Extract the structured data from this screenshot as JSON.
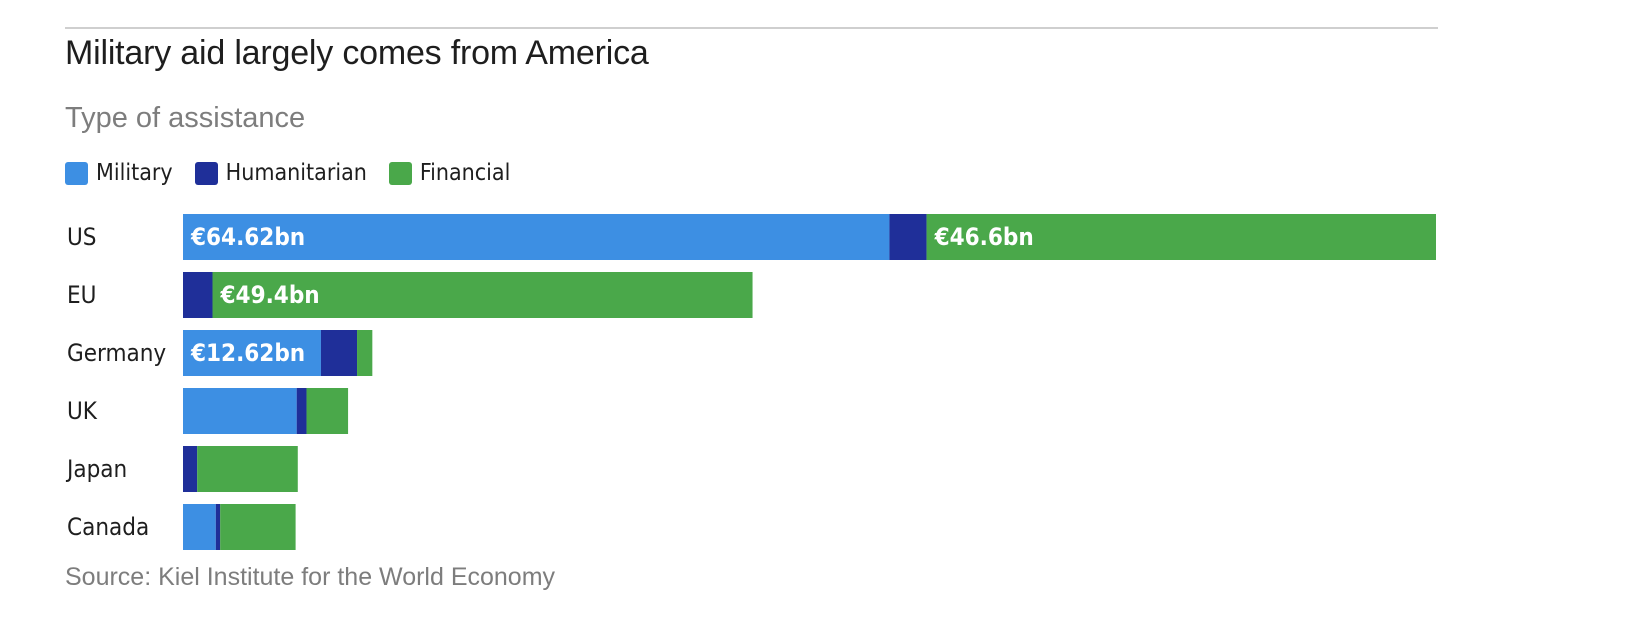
{
  "header": {
    "title": "Military aid largely comes from America",
    "subtitle": "Type of assistance"
  },
  "legend": [
    {
      "label": "Military",
      "color": "#3d8fe3"
    },
    {
      "label": "Humanitarian",
      "color": "#1f2f99"
    },
    {
      "label": "Financial",
      "color": "#4aa84a"
    }
  ],
  "footer": {
    "source": "Source: Kiel Institute for the World Economy"
  },
  "chart_data": {
    "type": "bar",
    "orientation": "horizontal",
    "stacked": true,
    "unit": "€bn",
    "categories": [
      "US",
      "EU",
      "Germany",
      "UK",
      "Japan",
      "Canada"
    ],
    "series": [
      {
        "name": "Military",
        "color": "#3d8fe3",
        "values": [
          64.62,
          0,
          12.62,
          10.4,
          0,
          3.0
        ],
        "data_labels": [
          "€64.62bn",
          "",
          "€12.62bn",
          "",
          "",
          ""
        ]
      },
      {
        "name": "Humanitarian",
        "color": "#1f2f99",
        "values": [
          3.4,
          2.7,
          3.3,
          0.9,
          1.3,
          0.4
        ],
        "data_labels": [
          "",
          "",
          "",
          "",
          "",
          ""
        ]
      },
      {
        "name": "Financial",
        "color": "#4aa84a",
        "values": [
          46.6,
          49.4,
          1.4,
          3.8,
          9.2,
          6.9
        ],
        "data_labels": [
          "€46.6bn",
          "€49.4bn",
          "",
          "",
          "",
          ""
        ]
      }
    ],
    "xlim": [
      0,
      114.62
    ],
    "grid": false,
    "legend_position": "top-left"
  }
}
